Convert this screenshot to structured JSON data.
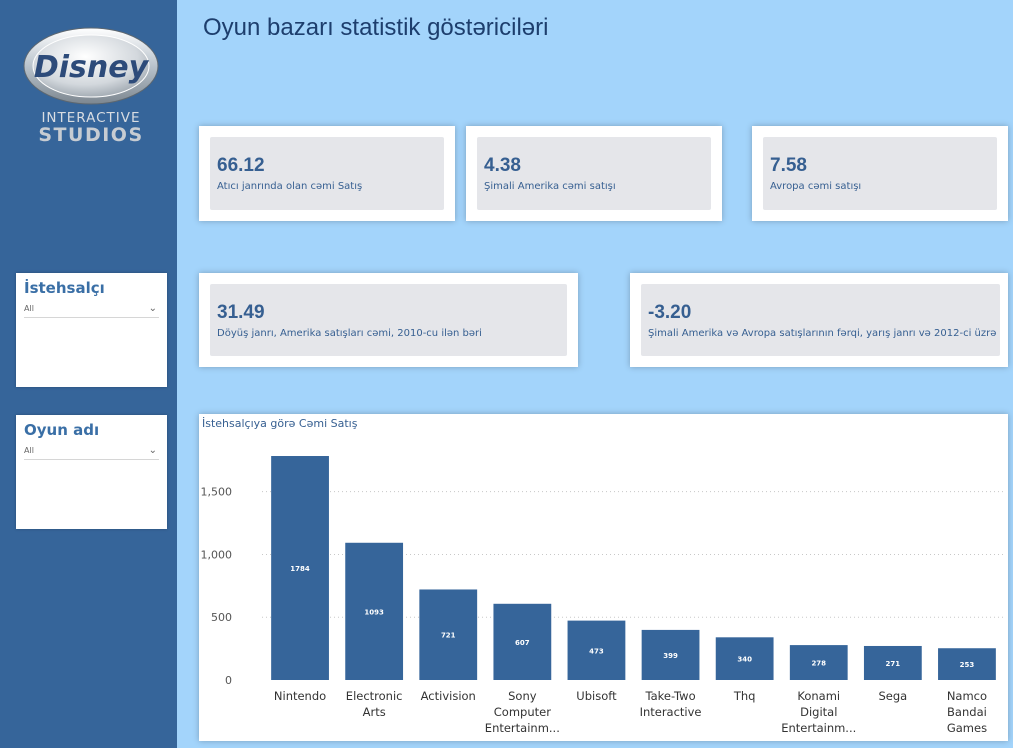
{
  "logo": {
    "brand": "Disney",
    "line1": "INTERACTIVE",
    "line2": "STUDIOS"
  },
  "page_title": "Oyun bazarı statistik göstəriciləri",
  "slicers": [
    {
      "title": "İstehsalçı",
      "value": "All"
    },
    {
      "title": "Oyun adı",
      "value": "All"
    }
  ],
  "kpis": [
    {
      "value": "66.12",
      "label": "Atıcı janrında olan cəmi Satış"
    },
    {
      "value": "4.38",
      "label": "Şimali Amerika cəmi satışı"
    },
    {
      "value": "7.58",
      "label": "Avropa cəmi satışı"
    },
    {
      "value": "31.49",
      "label": "Döyüş janrı, Amerika satışları cəmi, 2010-cu ilən bəri"
    },
    {
      "value": "-3.20",
      "label": "Şimali Amerika və Avropa satışlarının fərqi, yarış janrı və 2012-ci üzrə"
    }
  ],
  "chart_data": {
    "type": "bar",
    "title": "İstehsalçıya görə Cəmi Satış",
    "categories": [
      [
        "Nintendo"
      ],
      [
        "Electronic",
        "Arts"
      ],
      [
        "Activision"
      ],
      [
        "Sony",
        "Computer",
        "Entertainm..."
      ],
      [
        "Ubisoft"
      ],
      [
        "Take-Two",
        "Interactive"
      ],
      [
        "Thq"
      ],
      [
        "Konami",
        "Digital",
        "Entertainm..."
      ],
      [
        "Sega"
      ],
      [
        "Namco",
        "Bandai",
        "Games"
      ]
    ],
    "values": [
      1784,
      1093,
      721,
      607,
      473,
      399,
      340,
      278,
      271,
      253
    ],
    "ylim": [
      0,
      1800
    ],
    "yticks": [
      0,
      500,
      1000,
      1500
    ],
    "ytick_labels": [
      "0",
      "500",
      "1,000",
      "1,500"
    ],
    "bar_color": "#36659a",
    "grid": true
  }
}
